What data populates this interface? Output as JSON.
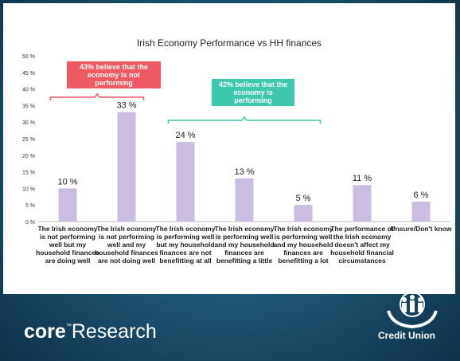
{
  "chart_data": {
    "type": "bar",
    "title": "Irish Economy Performance vs HH finances",
    "ylim": [
      0,
      50
    ],
    "yticks": [
      "0 %",
      "5 %",
      "10 %",
      "15 %",
      "20 %",
      "25 %",
      "30 %",
      "35 %",
      "40 %",
      "45 %",
      "50 %"
    ],
    "categories": [
      "The Irish economy is not performing well but my household finances are doing well",
      "The Irish economy is not performing well and my household finances are not doing well",
      "The Irish economy is performing well but my household finances are not benefitting at all",
      "The Irish economy is performing well and my household finances are benefitting a little",
      "The Irish economy is performing well and my household finances are benefitting a lot",
      "The performance of the Irish economy doesn't affect my household financial circumstances",
      "Unsure/Don't know"
    ],
    "values": [
      10,
      33,
      24,
      13,
      5,
      11,
      6
    ],
    "data_labels": [
      "10 %",
      "33 %",
      "24 %",
      "13 %",
      "5 %",
      "11 %",
      "6 %"
    ],
    "bar_color": "#cbbde0",
    "annotations": [
      {
        "text": "43% believe that the economy is not performing",
        "color": "#ef5962"
      },
      {
        "text": "42% believe that the economy is performing",
        "color": "#3dc7ad"
      }
    ]
  },
  "branding": {
    "core_bold": "core",
    "core_tm": "™",
    "core_rest": "Research",
    "credit_union": "Credit Union"
  }
}
